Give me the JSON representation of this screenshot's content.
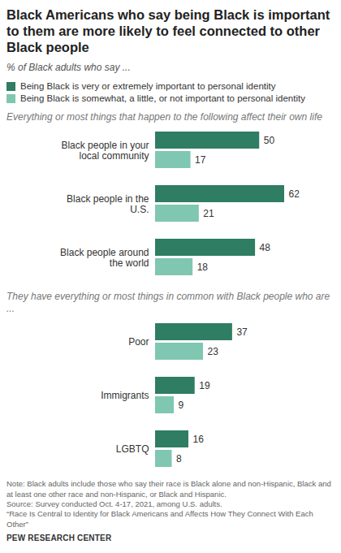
{
  "header": {
    "title": "Black Americans who say being Black is important to them are more likely to feel connected to other Black people",
    "subtitle": "% of Black adults who say ..."
  },
  "chart_data": [
    {
      "type": "bar",
      "orientation": "horizontal",
      "title": "Everything or most things that happen to the following affect their own life",
      "categories": [
        "Black people in your local community",
        "Black people in the U.S.",
        "Black people around the world"
      ],
      "series": [
        {
          "name": "Being Black is very or extremely important to personal identity",
          "color": "#2f7d62",
          "values": [
            50,
            62,
            48
          ]
        },
        {
          "name": "Being Black is somewhat, a little, or not important to personal identity",
          "color": "#7fc7b1",
          "values": [
            17,
            21,
            18
          ]
        }
      ],
      "data_labels": true,
      "tick_labels": "y",
      "legend": "top"
    },
    {
      "type": "bar",
      "orientation": "horizontal",
      "title": "They have everything or most things in common with Black people who are ...",
      "categories": [
        "Poor",
        "Immigrants",
        "LGBTQ"
      ],
      "series": [
        {
          "name": "Being Black is very or extremely important to personal identity",
          "color": "#2f7d62",
          "values": [
            37,
            19,
            16
          ]
        },
        {
          "name": "Being Black is somewhat, a little, or not important to personal identity",
          "color": "#7fc7b1",
          "values": [
            23,
            9,
            8
          ]
        }
      ],
      "data_labels": true,
      "tick_labels": "y"
    }
  ],
  "footer": {
    "note": "Note: Black adults include those who say their race is Black alone and non-Hispanic, Black and at least one other race and non-Hispanic, or Black and Hispanic.",
    "source": "Source: Survey conducted Oct. 4-17, 2021, among U.S. adults.",
    "report": "“Race Is Central to Identity for Black Americans and Affects How They Connect With Each Other”",
    "publisher": "PEW RESEARCH CENTER"
  }
}
